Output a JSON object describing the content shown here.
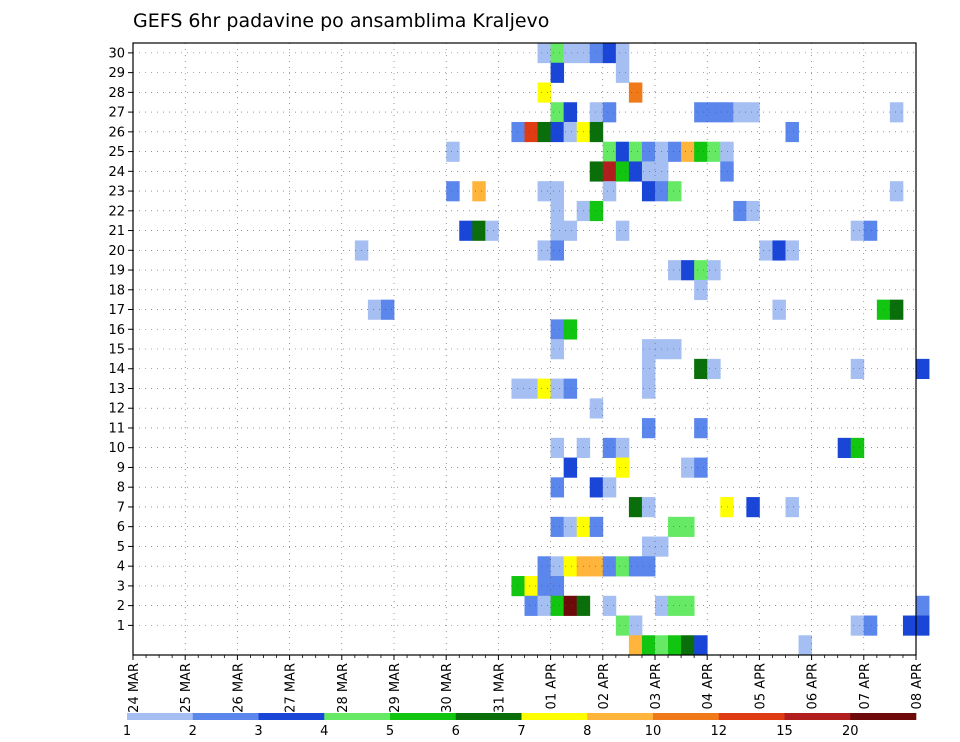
{
  "chart_data": {
    "type": "heatmap",
    "title": "GEFS 6hr padavine po ansamblima Kraljevo",
    "xlabel": "",
    "ylabel": "",
    "y_ticks": [
      "1",
      "2",
      "3",
      "4",
      "5",
      "6",
      "7",
      "8",
      "9",
      "10",
      "11",
      "12",
      "13",
      "14",
      "15",
      "16",
      "17",
      "18",
      "19",
      "20",
      "21",
      "22",
      "23",
      "24",
      "25",
      "26",
      "27",
      "28",
      "29",
      "30"
    ],
    "x_tick_labels": [
      "24 MAR",
      "25 MAR",
      "26 MAR",
      "27 MAR",
      "28 MAR",
      "29 MAR",
      "30 MAR",
      "31 MAR",
      "01 APR",
      "02 APR",
      "03 APR",
      "04 APR",
      "05 APR",
      "06 APR",
      "07 APR",
      "08 APR"
    ],
    "x_range_days": [
      0,
      15
    ],
    "y_range": [
      0,
      30
    ],
    "grid": true,
    "legend": "bottom",
    "colorbar": {
      "labels": [
        "1",
        "2",
        "3",
        "4",
        "5",
        "6",
        "7",
        "8",
        "10",
        "12",
        "15",
        "20"
      ],
      "colors": [
        "#a6bff2",
        "#5b86ec",
        "#1a46d8",
        "#66ea66",
        "#11c511",
        "#0a6e0a",
        "#ffff00",
        "#ffb43c",
        "#f07a1a",
        "#e03c14",
        "#b01e1e",
        "#6e0a0a"
      ]
    },
    "cells": [
      {
        "m": 30,
        "t": "31 MAR 18Z",
        "c": 1
      },
      {
        "m": 30,
        "t": "01 APR 00Z",
        "c": 4
      },
      {
        "m": 30,
        "t": "01 APR 06Z",
        "c": 1
      },
      {
        "m": 30,
        "t": "01 APR 12Z",
        "c": 1
      },
      {
        "m": 30,
        "t": "01 APR 18Z",
        "c": 2
      },
      {
        "m": 30,
        "t": "02 APR 00Z",
        "c": 3
      },
      {
        "m": 30,
        "t": "02 APR 06Z",
        "c": 1
      },
      {
        "m": 29,
        "t": "01 APR 00Z",
        "c": 3
      },
      {
        "m": 29,
        "t": "02 APR 06Z",
        "c": 1
      },
      {
        "m": 28,
        "t": "31 MAR 18Z",
        "c": 7
      },
      {
        "m": 28,
        "t": "02 APR 12Z",
        "c": 9
      },
      {
        "m": 27,
        "t": "01 APR 00Z",
        "c": 4
      },
      {
        "m": 27,
        "t": "01 APR 06Z",
        "c": 3
      },
      {
        "m": 27,
        "t": "01 APR 18Z",
        "c": 1
      },
      {
        "m": 27,
        "t": "02 APR 00Z",
        "c": 2
      },
      {
        "m": 27,
        "t": "03 APR 18Z",
        "c": 2
      },
      {
        "m": 27,
        "t": "04 APR 00Z",
        "c": 2
      },
      {
        "m": 27,
        "t": "04 APR 06Z",
        "c": 2
      },
      {
        "m": 27,
        "t": "04 APR 12Z",
        "c": 1
      },
      {
        "m": 27,
        "t": "04 APR 18Z",
        "c": 1
      },
      {
        "m": 27,
        "t": "07 APR 12Z",
        "c": 1
      },
      {
        "m": 26,
        "t": "31 MAR 06Z",
        "c": 2
      },
      {
        "m": 26,
        "t": "31 MAR 12Z",
        "c": 10
      },
      {
        "m": 26,
        "t": "31 MAR 18Z",
        "c": 6
      },
      {
        "m": 26,
        "t": "01 APR 00Z",
        "c": 3
      },
      {
        "m": 26,
        "t": "01 APR 06Z",
        "c": 1
      },
      {
        "m": 26,
        "t": "01 APR 12Z",
        "c": 7
      },
      {
        "m": 26,
        "t": "01 APR 18Z",
        "c": 6
      },
      {
        "m": 26,
        "t": "05 APR 12Z",
        "c": 2
      },
      {
        "m": 25,
        "t": "30 MAR 00Z",
        "c": 1
      },
      {
        "m": 25,
        "t": "02 APR 00Z",
        "c": 4
      },
      {
        "m": 25,
        "t": "02 APR 06Z",
        "c": 3
      },
      {
        "m": 25,
        "t": "02 APR 12Z",
        "c": 4
      },
      {
        "m": 25,
        "t": "02 APR 18Z",
        "c": 2
      },
      {
        "m": 25,
        "t": "03 APR 00Z",
        "c": 1
      },
      {
        "m": 25,
        "t": "03 APR 06Z",
        "c": 2
      },
      {
        "m": 25,
        "t": "03 APR 12Z",
        "c": 8
      },
      {
        "m": 25,
        "t": "03 APR 18Z",
        "c": 5
      },
      {
        "m": 25,
        "t": "04 APR 00Z",
        "c": 4
      },
      {
        "m": 25,
        "t": "04 APR 06Z",
        "c": 1
      },
      {
        "m": 24,
        "t": "01 APR 18Z",
        "c": 6
      },
      {
        "m": 24,
        "t": "02 APR 00Z",
        "c": 11
      },
      {
        "m": 24,
        "t": "02 APR 06Z",
        "c": 5
      },
      {
        "m": 24,
        "t": "02 APR 12Z",
        "c": 3
      },
      {
        "m": 24,
        "t": "02 APR 18Z",
        "c": 1
      },
      {
        "m": 24,
        "t": "03 APR 00Z",
        "c": 1
      },
      {
        "m": 24,
        "t": "04 APR 06Z",
        "c": 2
      },
      {
        "m": 23,
        "t": "30 MAR 00Z",
        "c": 2
      },
      {
        "m": 23,
        "t": "30 MAR 12Z",
        "c": 8
      },
      {
        "m": 23,
        "t": "31 MAR 18Z",
        "c": 1
      },
      {
        "m": 23,
        "t": "01 APR 00Z",
        "c": 1
      },
      {
        "m": 23,
        "t": "02 APR 00Z",
        "c": 1
      },
      {
        "m": 23,
        "t": "02 APR 18Z",
        "c": 3
      },
      {
        "m": 23,
        "t": "03 APR 00Z",
        "c": 2
      },
      {
        "m": 23,
        "t": "03 APR 06Z",
        "c": 4
      },
      {
        "m": 23,
        "t": "07 APR 12Z",
        "c": 1
      },
      {
        "m": 22,
        "t": "01 APR 00Z",
        "c": 1
      },
      {
        "m": 22,
        "t": "01 APR 12Z",
        "c": 1
      },
      {
        "m": 22,
        "t": "01 APR 18Z",
        "c": 5
      },
      {
        "m": 22,
        "t": "04 APR 12Z",
        "c": 2
      },
      {
        "m": 22,
        "t": "04 APR 18Z",
        "c": 1
      },
      {
        "m": 21,
        "t": "30 MAR 06Z",
        "c": 3
      },
      {
        "m": 21,
        "t": "30 MAR 12Z",
        "c": 6
      },
      {
        "m": 21,
        "t": "30 MAR 18Z",
        "c": 1
      },
      {
        "m": 21,
        "t": "01 APR 00Z",
        "c": 1
      },
      {
        "m": 21,
        "t": "01 APR 06Z",
        "c": 1
      },
      {
        "m": 21,
        "t": "02 APR 06Z",
        "c": 1
      },
      {
        "m": 21,
        "t": "06 APR 18Z",
        "c": 1
      },
      {
        "m": 21,
        "t": "07 APR 00Z",
        "c": 2
      },
      {
        "m": 20,
        "t": "28 MAR 06Z",
        "c": 1
      },
      {
        "m": 20,
        "t": "31 MAR 18Z",
        "c": 1
      },
      {
        "m": 20,
        "t": "01 APR 00Z",
        "c": 2
      },
      {
        "m": 20,
        "t": "05 APR 00Z",
        "c": 1
      },
      {
        "m": 20,
        "t": "05 APR 06Z",
        "c": 3
      },
      {
        "m": 20,
        "t": "05 APR 12Z",
        "c": 1
      },
      {
        "m": 19,
        "t": "03 APR 06Z",
        "c": 1
      },
      {
        "m": 19,
        "t": "03 APR 12Z",
        "c": 3
      },
      {
        "m": 19,
        "t": "03 APR 18Z",
        "c": 4
      },
      {
        "m": 19,
        "t": "04 APR 00Z",
        "c": 1
      },
      {
        "m": 18,
        "t": "03 APR 18Z",
        "c": 1
      },
      {
        "m": 17,
        "t": "28 MAR 12Z",
        "c": 1
      },
      {
        "m": 17,
        "t": "28 MAR 18Z",
        "c": 2
      },
      {
        "m": 17,
        "t": "05 APR 06Z",
        "c": 1
      },
      {
        "m": 17,
        "t": "07 APR 06Z",
        "c": 5
      },
      {
        "m": 17,
        "t": "07 APR 12Z",
        "c": 6
      },
      {
        "m": 16,
        "t": "01 APR 00Z",
        "c": 2
      },
      {
        "m": 16,
        "t": "01 APR 06Z",
        "c": 5
      },
      {
        "m": 15,
        "t": "01 APR 00Z",
        "c": 1
      },
      {
        "m": 15,
        "t": "02 APR 18Z",
        "c": 1
      },
      {
        "m": 15,
        "t": "03 APR 00Z",
        "c": 1
      },
      {
        "m": 15,
        "t": "03 APR 06Z",
        "c": 1
      },
      {
        "m": 14,
        "t": "02 APR 18Z",
        "c": 1
      },
      {
        "m": 14,
        "t": "03 APR 18Z",
        "c": 6
      },
      {
        "m": 14,
        "t": "04 APR 00Z",
        "c": 1
      },
      {
        "m": 14,
        "t": "06 APR 18Z",
        "c": 1
      },
      {
        "m": 14,
        "t": "08 APR 00Z",
        "c": 3
      },
      {
        "m": 13,
        "t": "31 MAR 06Z",
        "c": 1
      },
      {
        "m": 13,
        "t": "31 MAR 12Z",
        "c": 1
      },
      {
        "m": 13,
        "t": "31 MAR 18Z",
        "c": 7
      },
      {
        "m": 13,
        "t": "01 APR 00Z",
        "c": 1
      },
      {
        "m": 13,
        "t": "01 APR 06Z",
        "c": 2
      },
      {
        "m": 13,
        "t": "02 APR 18Z",
        "c": 1
      },
      {
        "m": 12,
        "t": "01 APR 18Z",
        "c": 1
      },
      {
        "m": 11,
        "t": "02 APR 18Z",
        "c": 2
      },
      {
        "m": 11,
        "t": "03 APR 18Z",
        "c": 2
      },
      {
        "m": 10,
        "t": "01 APR 00Z",
        "c": 1
      },
      {
        "m": 10,
        "t": "01 APR 12Z",
        "c": 1
      },
      {
        "m": 10,
        "t": "02 APR 00Z",
        "c": 2
      },
      {
        "m": 10,
        "t": "02 APR 06Z",
        "c": 1
      },
      {
        "m": 10,
        "t": "06 APR 12Z",
        "c": 3
      },
      {
        "m": 10,
        "t": "06 APR 18Z",
        "c": 5
      },
      {
        "m": 9,
        "t": "01 APR 06Z",
        "c": 3
      },
      {
        "m": 9,
        "t": "02 APR 06Z",
        "c": 7
      },
      {
        "m": 9,
        "t": "03 APR 12Z",
        "c": 1
      },
      {
        "m": 9,
        "t": "03 APR 18Z",
        "c": 2
      },
      {
        "m": 8,
        "t": "01 APR 00Z",
        "c": 2
      },
      {
        "m": 8,
        "t": "01 APR 18Z",
        "c": 3
      },
      {
        "m": 8,
        "t": "02 APR 00Z",
        "c": 1
      },
      {
        "m": 7,
        "t": "02 APR 12Z",
        "c": 6
      },
      {
        "m": 7,
        "t": "02 APR 18Z",
        "c": 1
      },
      {
        "m": 7,
        "t": "04 APR 06Z",
        "c": 7
      },
      {
        "m": 7,
        "t": "04 APR 18Z",
        "c": 3
      },
      {
        "m": 7,
        "t": "05 APR 12Z",
        "c": 1
      },
      {
        "m": 6,
        "t": "01 APR 00Z",
        "c": 2
      },
      {
        "m": 6,
        "t": "01 APR 06Z",
        "c": 1
      },
      {
        "m": 6,
        "t": "01 APR 12Z",
        "c": 7
      },
      {
        "m": 6,
        "t": "01 APR 18Z",
        "c": 2
      },
      {
        "m": 6,
        "t": "03 APR 06Z",
        "c": 4
      },
      {
        "m": 6,
        "t": "03 APR 12Z",
        "c": 4
      },
      {
        "m": 5,
        "t": "02 APR 18Z",
        "c": 1
      },
      {
        "m": 5,
        "t": "03 APR 00Z",
        "c": 1
      },
      {
        "m": 4,
        "t": "31 MAR 18Z",
        "c": 2
      },
      {
        "m": 4,
        "t": "01 APR 00Z",
        "c": 1
      },
      {
        "m": 4,
        "t": "01 APR 06Z",
        "c": 7
      },
      {
        "m": 4,
        "t": "01 APR 12Z",
        "c": 8
      },
      {
        "m": 4,
        "t": "01 APR 18Z",
        "c": 8
      },
      {
        "m": 4,
        "t": "02 APR 00Z",
        "c": 2
      },
      {
        "m": 4,
        "t": "02 APR 06Z",
        "c": 4
      },
      {
        "m": 4,
        "t": "02 APR 12Z",
        "c": 2
      },
      {
        "m": 4,
        "t": "02 APR 18Z",
        "c": 2
      },
      {
        "m": 3,
        "t": "31 MAR 06Z",
        "c": 5
      },
      {
        "m": 3,
        "t": "31 MAR 12Z",
        "c": 7
      },
      {
        "m": 3,
        "t": "31 MAR 18Z",
        "c": 2
      },
      {
        "m": 3,
        "t": "01 APR 00Z",
        "c": 2
      },
      {
        "m": 2,
        "t": "31 MAR 12Z",
        "c": 2
      },
      {
        "m": 2,
        "t": "31 MAR 18Z",
        "c": 1
      },
      {
        "m": 2,
        "t": "01 APR 00Z",
        "c": 5
      },
      {
        "m": 2,
        "t": "01 APR 06Z",
        "c": 12
      },
      {
        "m": 2,
        "t": "01 APR 12Z",
        "c": 6
      },
      {
        "m": 2,
        "t": "02 APR 00Z",
        "c": 1
      },
      {
        "m": 2,
        "t": "03 APR 00Z",
        "c": 1
      },
      {
        "m": 2,
        "t": "03 APR 06Z",
        "c": 4
      },
      {
        "m": 2,
        "t": "03 APR 12Z",
        "c": 4
      },
      {
        "m": 2,
        "t": "08 APR 00Z",
        "c": 2
      },
      {
        "m": 1,
        "t": "02 APR 06Z",
        "c": 4
      },
      {
        "m": 1,
        "t": "02 APR 12Z",
        "c": 1
      },
      {
        "m": 1,
        "t": "06 APR 18Z",
        "c": 1
      },
      {
        "m": 1,
        "t": "07 APR 00Z",
        "c": 2
      },
      {
        "m": 1,
        "t": "07 APR 18Z",
        "c": 3
      },
      {
        "m": 1,
        "t": "08 APR 00Z",
        "c": 3
      },
      {
        "m": 0,
        "t": "02 APR 12Z",
        "c": 8
      },
      {
        "m": 0,
        "t": "02 APR 18Z",
        "c": 5
      },
      {
        "m": 0,
        "t": "03 APR 00Z",
        "c": 4
      },
      {
        "m": 0,
        "t": "03 APR 06Z",
        "c": 5
      },
      {
        "m": 0,
        "t": "03 APR 12Z",
        "c": 6
      },
      {
        "m": 0,
        "t": "03 APR 18Z",
        "c": 3
      },
      {
        "m": 0,
        "t": "05 APR 18Z",
        "c": 1
      }
    ]
  }
}
